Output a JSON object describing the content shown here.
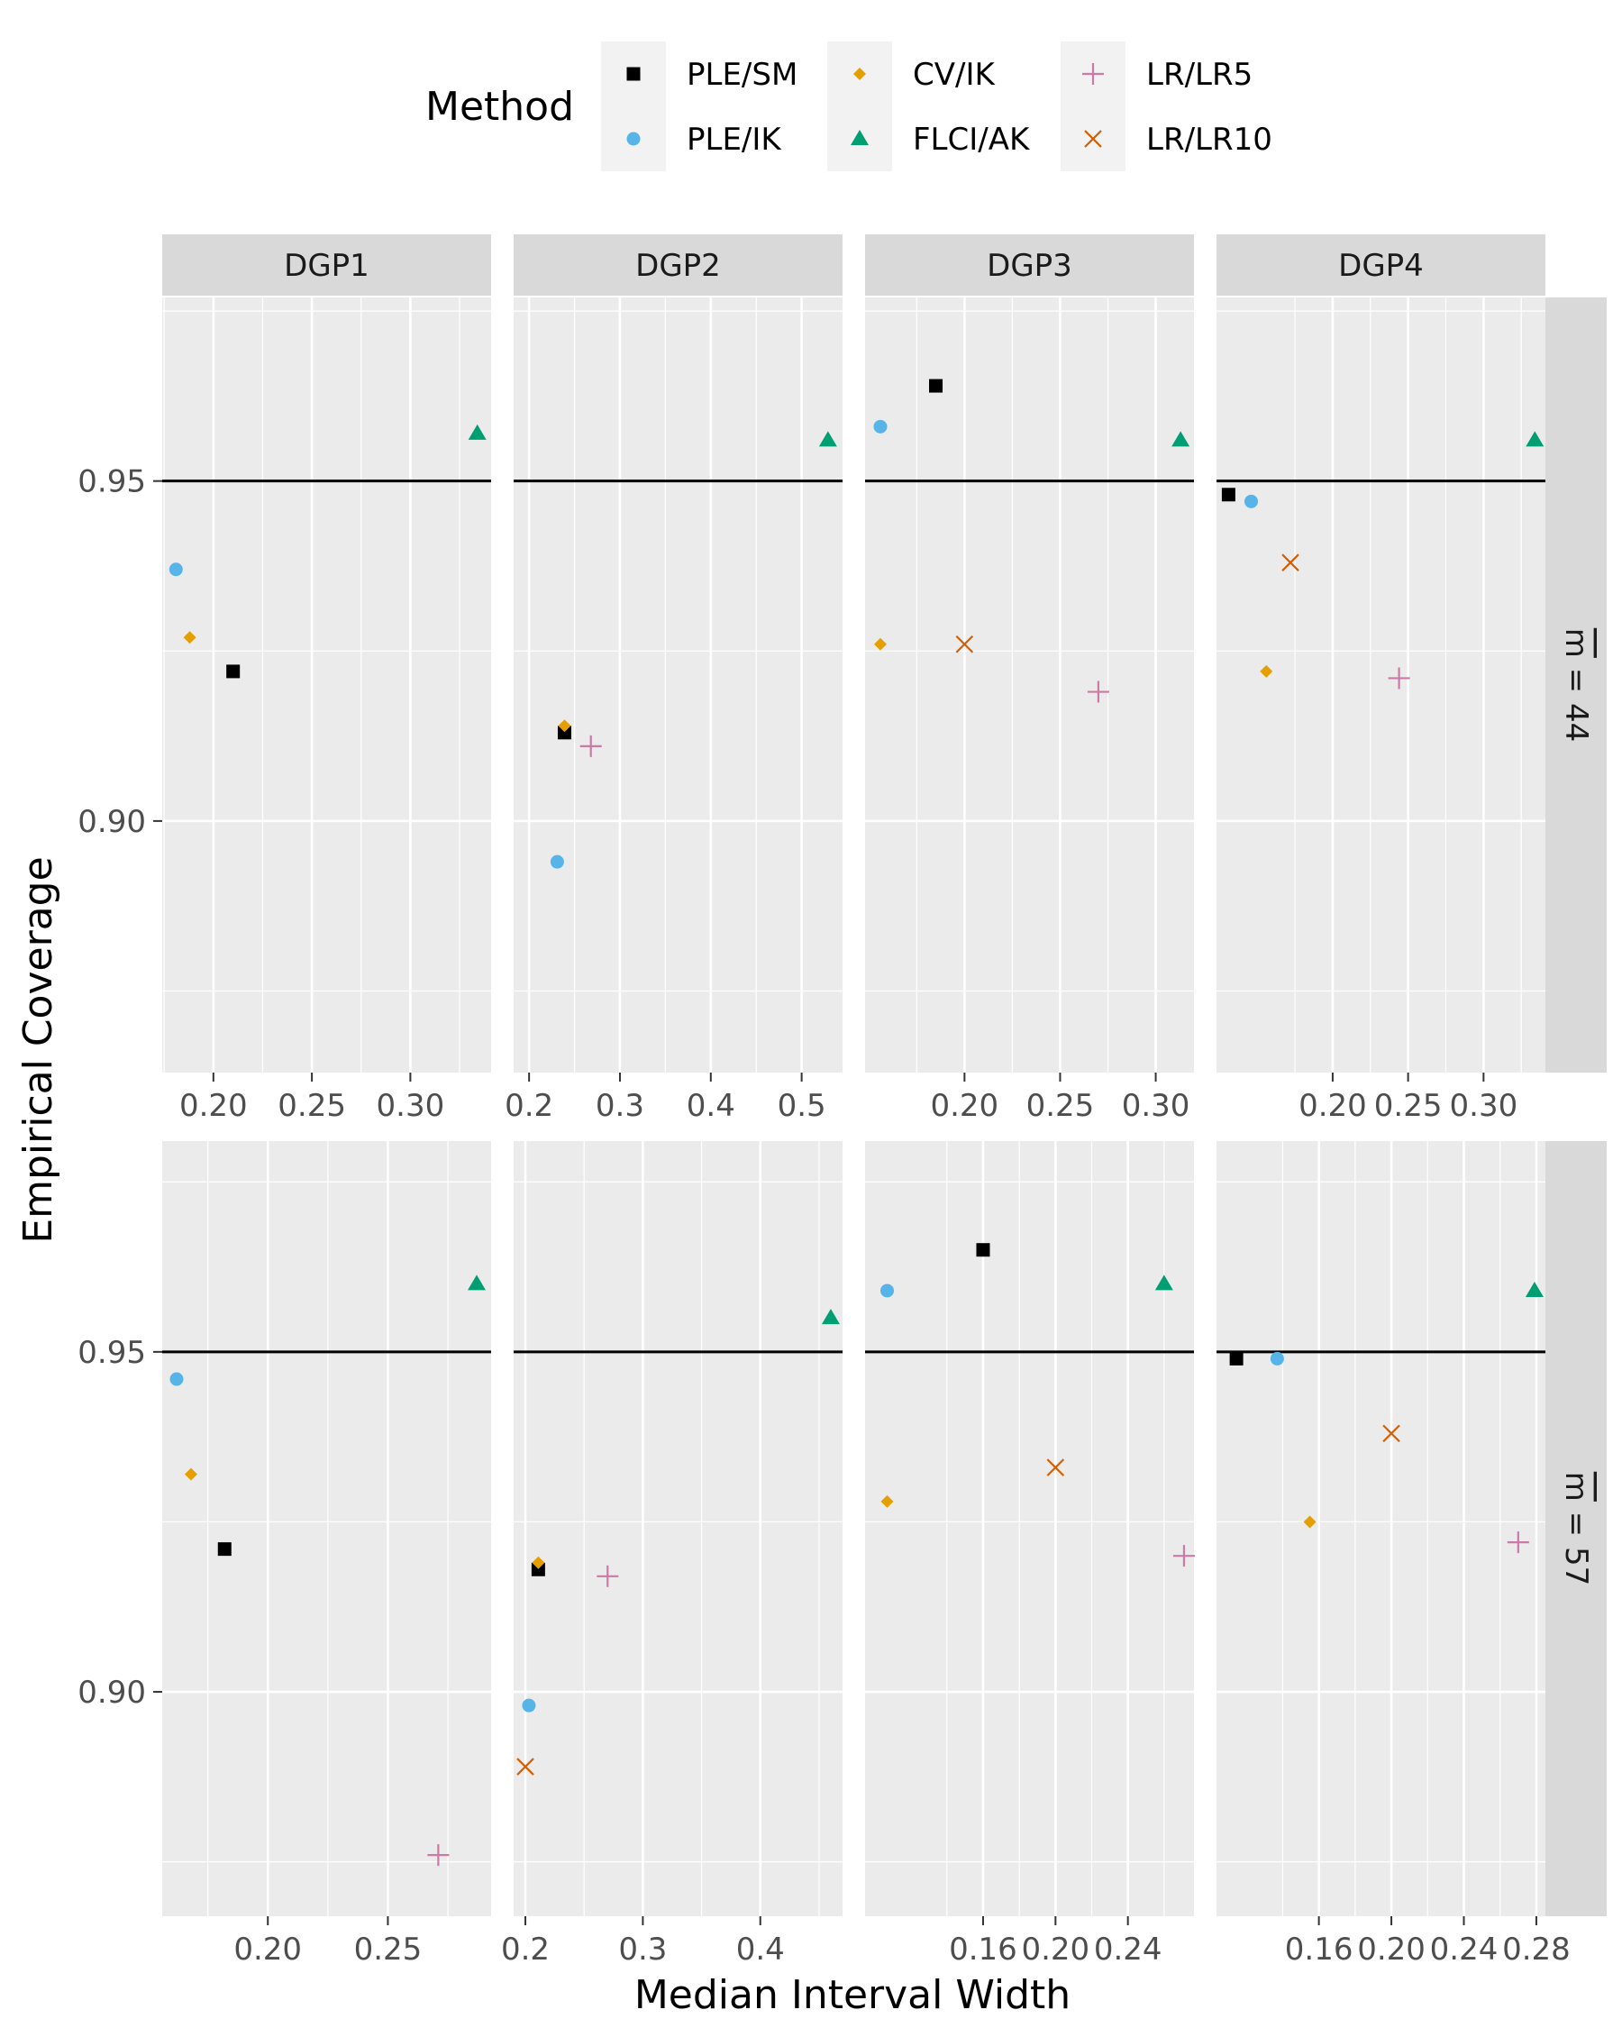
{
  "chart_data": {
    "type": "scatter",
    "xlabel": "Median Interval Width",
    "ylabel": "Empirical Coverage",
    "reference_line": 0.95,
    "legend": {
      "title": "Method",
      "position": "top",
      "entries": [
        {
          "method": "PLE/SM",
          "color": "#000000",
          "shape": "square"
        },
        {
          "method": "PLE/IK",
          "color": "#56B4E9",
          "shape": "circle"
        },
        {
          "method": "CV/IK",
          "color": "#E69F00",
          "shape": "diamond"
        },
        {
          "method": "FLCI/AK",
          "color": "#009E73",
          "shape": "triangle"
        },
        {
          "method": "LR/LR5",
          "color": "#CC79A7",
          "shape": "plus"
        },
        {
          "method": "LR/LR10",
          "color": "#D55E00",
          "shape": "cross"
        }
      ]
    },
    "columns": [
      "DGP1",
      "DGP2",
      "DGP3",
      "DGP4"
    ],
    "rows": [
      {
        "label_prefix": "m",
        "label_suffix": "= 44",
        "label": "m̄ = 44",
        "ylim": [
          0.863,
          0.977
        ],
        "yticks": [
          0.9,
          0.95
        ],
        "ytick_labels": [
          "0.90",
          "0.95"
        ]
      },
      {
        "label_prefix": "m",
        "label_suffix": "= 57",
        "label": "m̄ = 57",
        "ylim": [
          0.867,
          0.981
        ],
        "yticks": [
          0.9,
          0.95
        ],
        "ytick_labels": [
          "0.90",
          "0.95"
        ]
      }
    ],
    "panels": [
      {
        "row": 0,
        "col": 0,
        "xlim": [
          0.174,
          0.341
        ],
        "xticks": [
          0.2,
          0.25,
          0.3
        ],
        "xtick_labels": [
          "0.20",
          "0.25",
          "0.30"
        ],
        "points": [
          {
            "method": "PLE/SM",
            "x": 0.21,
            "y": 0.922
          },
          {
            "method": "PLE/IK",
            "x": 0.181,
            "y": 0.937
          },
          {
            "method": "CV/IK",
            "x": 0.188,
            "y": 0.927
          },
          {
            "method": "FLCI/AK",
            "x": 0.334,
            "y": 0.957
          }
        ]
      },
      {
        "row": 0,
        "col": 1,
        "xlim": [
          0.183,
          0.545
        ],
        "xticks": [
          0.2,
          0.3,
          0.4,
          0.5
        ],
        "xtick_labels": [
          "0.2",
          "0.3",
          "0.4",
          "0.5"
        ],
        "points": [
          {
            "method": "PLE/SM",
            "x": 0.239,
            "y": 0.913
          },
          {
            "method": "PLE/IK",
            "x": 0.231,
            "y": 0.894
          },
          {
            "method": "CV/IK",
            "x": 0.239,
            "y": 0.914
          },
          {
            "method": "FLCI/AK",
            "x": 0.529,
            "y": 0.956
          },
          {
            "method": "LR/LR5",
            "x": 0.268,
            "y": 0.911
          }
        ]
      },
      {
        "row": 0,
        "col": 2,
        "xlim": [
          0.148,
          0.32
        ],
        "xticks": [
          0.2,
          0.25,
          0.3
        ],
        "xtick_labels": [
          "0.20",
          "0.25",
          "0.30"
        ],
        "points": [
          {
            "method": "PLE/SM",
            "x": 0.185,
            "y": 0.964
          },
          {
            "method": "PLE/IK",
            "x": 0.156,
            "y": 0.958
          },
          {
            "method": "CV/IK",
            "x": 0.156,
            "y": 0.926
          },
          {
            "method": "FLCI/AK",
            "x": 0.313,
            "y": 0.956
          },
          {
            "method": "LR/LR5",
            "x": 0.27,
            "y": 0.919
          },
          {
            "method": "LR/LR10",
            "x": 0.2,
            "y": 0.926
          }
        ]
      },
      {
        "row": 0,
        "col": 3,
        "xlim": [
          0.123,
          0.341
        ],
        "xticks": [
          0.2,
          0.25,
          0.3
        ],
        "xtick_labels": [
          "0.20",
          "0.25",
          "0.30"
        ],
        "points": [
          {
            "method": "PLE/SM",
            "x": 0.131,
            "y": 0.948
          },
          {
            "method": "PLE/IK",
            "x": 0.146,
            "y": 0.947
          },
          {
            "method": "CV/IK",
            "x": 0.156,
            "y": 0.922
          },
          {
            "method": "FLCI/AK",
            "x": 0.334,
            "y": 0.956
          },
          {
            "method": "LR/LR5",
            "x": 0.244,
            "y": 0.921
          },
          {
            "method": "LR/LR10",
            "x": 0.172,
            "y": 0.938
          }
        ]
      },
      {
        "row": 1,
        "col": 0,
        "xlim": [
          0.156,
          0.293
        ],
        "xticks": [
          0.2,
          0.25
        ],
        "xtick_labels": [
          "0.20",
          "0.25"
        ],
        "points": [
          {
            "method": "PLE/SM",
            "x": 0.182,
            "y": 0.921
          },
          {
            "method": "PLE/IK",
            "x": 0.162,
            "y": 0.946
          },
          {
            "method": "CV/IK",
            "x": 0.168,
            "y": 0.932
          },
          {
            "method": "FLCI/AK",
            "x": 0.287,
            "y": 0.96
          },
          {
            "method": "LR/LR5",
            "x": 0.271,
            "y": 0.876
          }
        ]
      },
      {
        "row": 1,
        "col": 1,
        "xlim": [
          0.19,
          0.47
        ],
        "xticks": [
          0.2,
          0.3,
          0.4
        ],
        "xtick_labels": [
          "0.2",
          "0.3",
          "0.4"
        ],
        "points": [
          {
            "method": "PLE/SM",
            "x": 0.211,
            "y": 0.918
          },
          {
            "method": "PLE/IK",
            "x": 0.203,
            "y": 0.898
          },
          {
            "method": "CV/IK",
            "x": 0.211,
            "y": 0.919
          },
          {
            "method": "FLCI/AK",
            "x": 0.46,
            "y": 0.955
          },
          {
            "method": "LR/LR5",
            "x": 0.27,
            "y": 0.917
          },
          {
            "method": "LR/LR10",
            "x": 0.2,
            "y": 0.889
          }
        ]
      },
      {
        "row": 1,
        "col": 2,
        "xlim": [
          0.0948,
          0.2765
        ],
        "xticks": [
          0.16,
          0.2,
          0.24
        ],
        "xtick_labels": [
          "0.16",
          "0.20",
          "0.24"
        ],
        "points": [
          {
            "method": "PLE/SM",
            "x": 0.16,
            "y": 0.965
          },
          {
            "method": "PLE/IK",
            "x": 0.107,
            "y": 0.959
          },
          {
            "method": "CV/IK",
            "x": 0.107,
            "y": 0.928
          },
          {
            "method": "FLCI/AK",
            "x": 0.26,
            "y": 0.96
          },
          {
            "method": "LR/LR5",
            "x": 0.271,
            "y": 0.92
          },
          {
            "method": "LR/LR10",
            "x": 0.2,
            "y": 0.933
          }
        ]
      },
      {
        "row": 1,
        "col": 3,
        "xlim": [
          0.1035,
          0.285
        ],
        "xticks": [
          0.16,
          0.2,
          0.24,
          0.28
        ],
        "xtick_labels": [
          "0.16",
          "0.20",
          "0.24",
          "0.28"
        ],
        "points": [
          {
            "method": "PLE/SM",
            "x": 0.1145,
            "y": 0.949
          },
          {
            "method": "PLE/IK",
            "x": 0.137,
            "y": 0.949
          },
          {
            "method": "CV/IK",
            "x": 0.155,
            "y": 0.925
          },
          {
            "method": "FLCI/AK",
            "x": 0.279,
            "y": 0.959
          },
          {
            "method": "LR/LR5",
            "x": 0.27,
            "y": 0.922
          },
          {
            "method": "LR/LR10",
            "x": 0.2,
            "y": 0.938
          }
        ]
      }
    ]
  }
}
